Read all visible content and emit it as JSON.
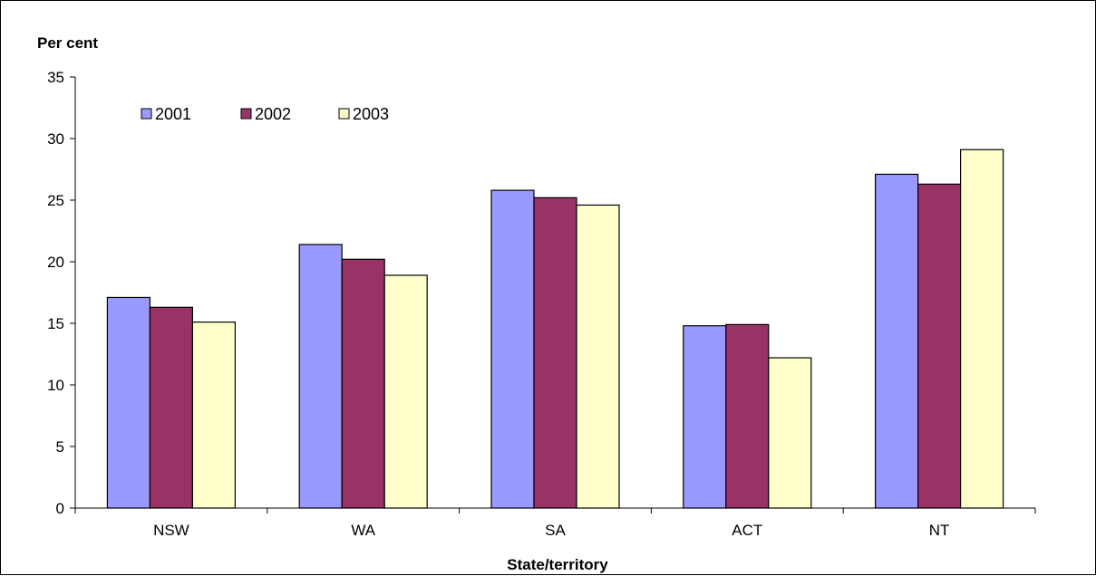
{
  "chart_data": {
    "type": "bar",
    "ylabel": "Per cent",
    "xlabel": "State/territory",
    "categories": [
      "NSW",
      "WA",
      "SA",
      "ACT",
      "NT"
    ],
    "series": [
      {
        "name": "2001",
        "values": [
          17.1,
          21.4,
          25.8,
          14.8,
          27.1
        ],
        "color": "#9999ff"
      },
      {
        "name": "2002",
        "values": [
          16.3,
          20.2,
          25.2,
          14.9,
          26.3
        ],
        "color": "#993366"
      },
      {
        "name": "2003",
        "values": [
          15.1,
          18.9,
          24.6,
          12.2,
          29.1
        ],
        "color": "#ffffcc"
      }
    ],
    "ylim": [
      0,
      35
    ],
    "yticks": [
      "0",
      "5",
      "10",
      "15",
      "20",
      "25",
      "30",
      "35"
    ],
    "grid": false,
    "legend_position": "top-left"
  }
}
